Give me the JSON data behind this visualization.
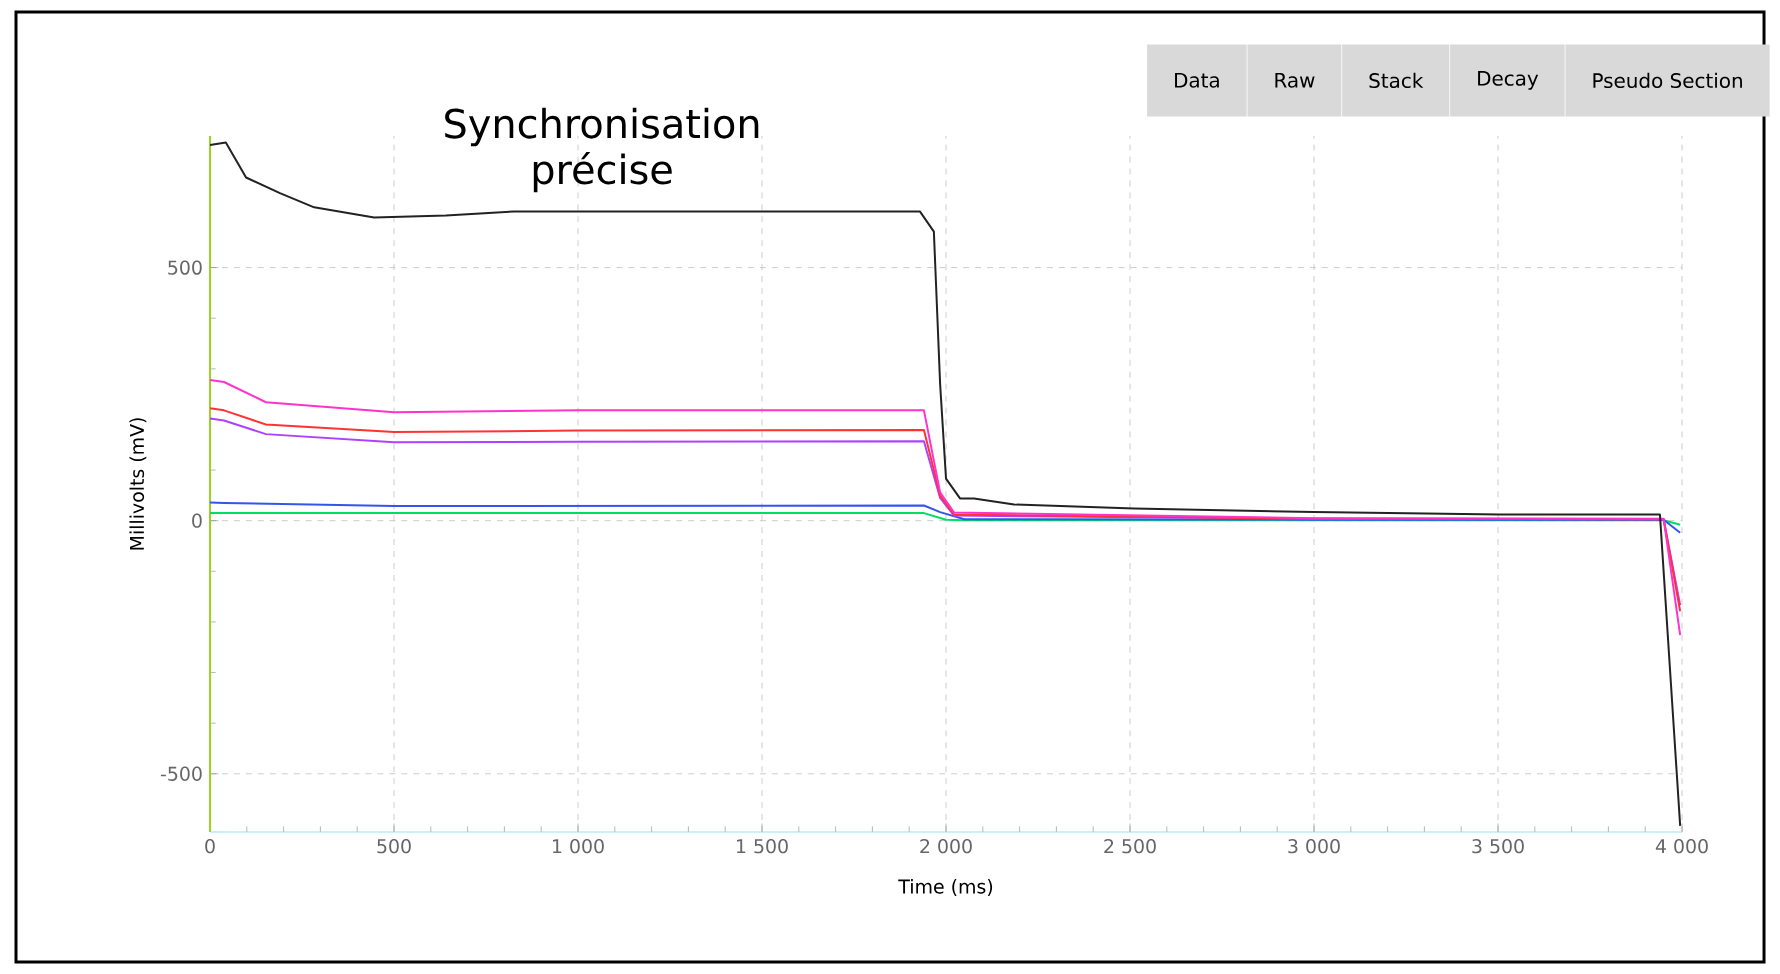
{
  "chart_data": {
    "type": "line",
    "title": "Synchronisation précise",
    "xlabel": "Time (ms)",
    "ylabel": "Millivolts (mV)",
    "annotations": [
      "Data",
      "Raw",
      "Stack",
      "Decay",
      "Pseudo Section"
    ],
    "xlim": [
      0,
      4000
    ],
    "ylim": [
      -615,
      760
    ],
    "xticks": [
      0,
      500,
      {
        "value": 1000,
        "label": "1 000"
      },
      {
        "value": 1500,
        "label": "1 500"
      },
      {
        "value": 2000,
        "label": "2 000"
      },
      {
        "value": 2500,
        "label": "2 500"
      },
      {
        "value": 3000,
        "label": "3 000"
      },
      {
        "value": 3500,
        "label": "3 500"
      },
      {
        "value": 4000,
        "label": "4 000"
      }
    ],
    "yticks": [
      -500,
      0,
      500
    ],
    "grid": true,
    "series": [
      {
        "color": "#00dd66",
        "x": [
          0,
          1940,
          2000,
          2050,
          3000,
          3950,
          3995
        ],
        "values": [
          15,
          15,
          2,
          1,
          1,
          1,
          -8
        ]
      },
      {
        "color": "#3355ee",
        "x": [
          0,
          38,
          500,
          1940,
          1984,
          2050,
          3000,
          3950,
          3995
        ],
        "values": [
          36,
          35,
          29,
          30,
          17,
          3,
          2,
          2,
          -24
        ]
      },
      {
        "color": "#b040ff",
        "x": [
          0,
          38,
          152,
          500,
          1000,
          1940,
          1984,
          2022,
          3000,
          3950,
          3995
        ],
        "values": [
          202,
          198,
          171,
          155,
          156,
          157,
          45,
          10,
          4,
          3,
          -167
        ]
      },
      {
        "color": "#ff3333",
        "x": [
          0,
          38,
          152,
          500,
          1000,
          1940,
          1984,
          2022,
          3000,
          3950,
          3995
        ],
        "values": [
          222,
          218,
          190,
          175,
          178,
          179,
          50,
          12,
          4,
          3,
          -179
        ]
      },
      {
        "color": "#ff33cc",
        "x": [
          0,
          38,
          152,
          500,
          1005,
          1940,
          1984,
          2022,
          3000,
          3950,
          3995
        ],
        "values": [
          278,
          274,
          234,
          214,
          218,
          218,
          56,
          16,
          5,
          4,
          -226
        ]
      },
      {
        "color": "#222222",
        "x": [
          0,
          43,
          98,
          190,
          283,
          446,
          641,
          826,
          1929,
          1967,
          1984,
          2000,
          2038,
          2076,
          2185,
          2511,
          3000,
          3505,
          3940,
          3995
        ],
        "values": [
          742,
          747,
          678,
          647,
          619,
          599,
          603,
          611,
          611,
          571,
          270,
          83,
          44,
          44,
          32,
          24,
          17,
          12,
          12,
          -603
        ]
      }
    ]
  }
}
